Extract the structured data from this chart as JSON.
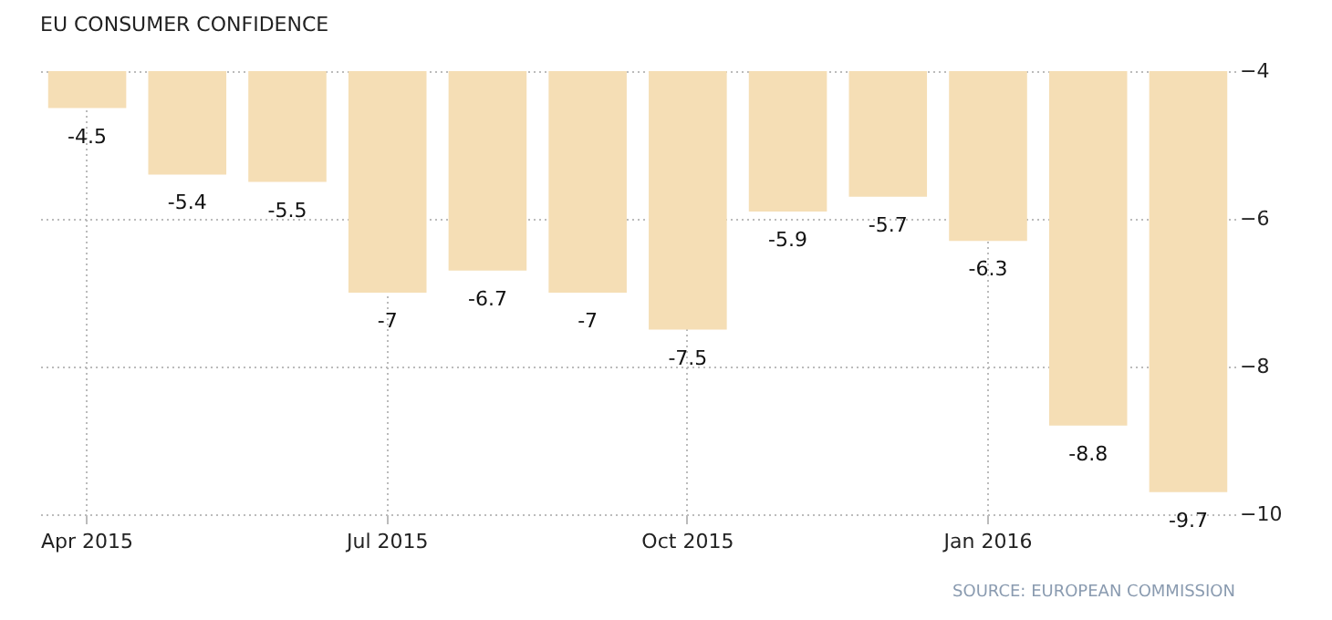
{
  "chart_data": {
    "type": "bar",
    "title": "EU CONSUMER CONFIDENCE",
    "categories": [
      "Apr 2015",
      null,
      null,
      "Jul 2015",
      null,
      null,
      "Oct 2015",
      null,
      null,
      "Jan 2016",
      null,
      null
    ],
    "values": [
      -4.5,
      -5.4,
      -5.5,
      -7,
      -6.7,
      -7,
      -7.5,
      -5.9,
      -5.7,
      -6.3,
      -8.8,
      -9.7
    ],
    "color": "#f5deb5",
    "ylim": [
      -10,
      -4
    ],
    "yticks": [
      -10,
      -8,
      -6,
      -4
    ],
    "grid": true,
    "data_labels": true,
    "annotations": [
      "SOURCE: EUROPEAN COMMISSION"
    ]
  }
}
